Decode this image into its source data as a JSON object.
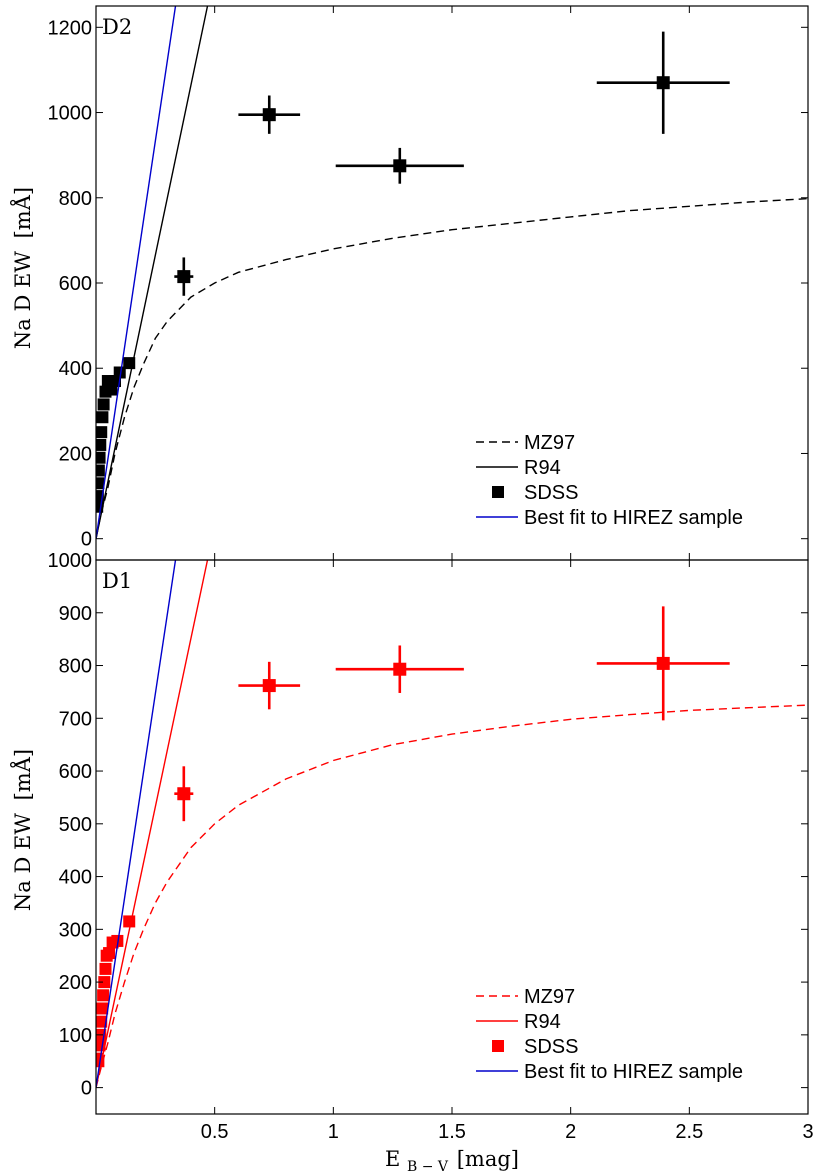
{
  "chart_data": [
    {
      "type": "scatter",
      "panel_label": "D2",
      "ylabel_main": "Na D EW",
      "ylabel_unit": "[mÅ]",
      "xlabel": "",
      "xlim": [
        0,
        3
      ],
      "ylim": [
        -50,
        1250
      ],
      "xticks": [
        0.5,
        1,
        1.5,
        2,
        2.5,
        3
      ],
      "xtick_labels": [
        "0.5",
        "1",
        "1.5",
        "2",
        "2.5",
        "3"
      ],
      "yticks": [
        0,
        200,
        400,
        600,
        800,
        1000,
        1200
      ],
      "ytick_labels": [
        "0",
        "200",
        "400",
        "600",
        "800",
        "1000",
        "1200"
      ],
      "series": [
        {
          "name": "MZ97",
          "kind": "curve",
          "style": "dashed",
          "color": "#000000",
          "x": [
            0,
            0.02,
            0.05,
            0.08,
            0.12,
            0.16,
            0.2,
            0.25,
            0.3,
            0.4,
            0.5,
            0.6,
            0.8,
            1.0,
            1.25,
            1.5,
            1.75,
            2.0,
            2.25,
            2.5,
            2.75,
            3.0
          ],
          "y": [
            0,
            55,
            120,
            200,
            285,
            355,
            410,
            470,
            510,
            567,
            600,
            625,
            655,
            680,
            705,
            725,
            740,
            755,
            770,
            780,
            790,
            798
          ]
        },
        {
          "name": "R94",
          "kind": "line",
          "style": "solid",
          "color": "#000000",
          "x": [
            0,
            0.47
          ],
          "y": [
            0,
            1250
          ]
        },
        {
          "name": "SDSS",
          "kind": "points",
          "marker": "square",
          "color": "#000000",
          "points": [
            {
              "x": 0.005,
              "y": 75
            },
            {
              "x": 0.008,
              "y": 100
            },
            {
              "x": 0.01,
              "y": 130
            },
            {
              "x": 0.012,
              "y": 160
            },
            {
              "x": 0.015,
              "y": 190
            },
            {
              "x": 0.018,
              "y": 220
            },
            {
              "x": 0.022,
              "y": 250
            },
            {
              "x": 0.027,
              "y": 285
            },
            {
              "x": 0.032,
              "y": 315
            },
            {
              "x": 0.04,
              "y": 345
            },
            {
              "x": 0.05,
              "y": 370
            },
            {
              "x": 0.065,
              "y": 350
            },
            {
              "x": 0.08,
              "y": 370
            },
            {
              "x": 0.1,
              "y": 390
            },
            {
              "x": 0.14,
              "y": 412
            }
          ],
          "binned": [
            {
              "x": 0.37,
              "y": 615,
              "xerr": 0.04,
              "yerr": 45
            },
            {
              "x": 0.73,
              "y": 995,
              "xerr": 0.13,
              "yerr": 45
            },
            {
              "x": 1.28,
              "y": 875,
              "xerr": 0.27,
              "yerr": 42
            },
            {
              "x": 2.39,
              "y": 1070,
              "xerr": 0.28,
              "yerr": 120
            }
          ]
        },
        {
          "name": "Best fit to HIREZ sample",
          "kind": "line",
          "style": "solid",
          "color": "#0000cc",
          "x": [
            0,
            0.335
          ],
          "y": [
            0,
            1250
          ]
        }
      ],
      "legend": {
        "placement": "bottom-right",
        "entries": [
          "MZ97",
          "R94",
          "SDSS",
          "Best fit to HIREZ sample"
        ]
      }
    },
    {
      "type": "scatter",
      "panel_label": "D1",
      "ylabel_main": "Na D EW",
      "ylabel_unit": "[mÅ]",
      "xlabel_main": "E",
      "xlabel_sub": "B − V",
      "xlabel_unit": "[mag]",
      "xlim": [
        0,
        3
      ],
      "ylim": [
        -50,
        1000
      ],
      "xticks": [
        0.5,
        1,
        1.5,
        2,
        2.5,
        3
      ],
      "xtick_labels": [
        "0.5",
        "1",
        "1.5",
        "2",
        "2.5",
        "3"
      ],
      "yticks": [
        0,
        100,
        200,
        300,
        400,
        500,
        600,
        700,
        800,
        900,
        1000
      ],
      "ytick_labels": [
        "0",
        "100",
        "200",
        "300",
        "400",
        "500",
        "600",
        "700",
        "800",
        "900",
        "1000"
      ],
      "series": [
        {
          "name": "MZ97",
          "kind": "curve",
          "style": "dashed",
          "color": "#ff0000",
          "x": [
            0,
            0.02,
            0.05,
            0.08,
            0.12,
            0.16,
            0.2,
            0.25,
            0.3,
            0.4,
            0.5,
            0.6,
            0.8,
            1.0,
            1.25,
            1.5,
            1.75,
            2.0,
            2.25,
            2.5,
            2.75,
            3.0
          ],
          "y": [
            0,
            35,
            85,
            140,
            200,
            255,
            300,
            350,
            390,
            455,
            500,
            535,
            585,
            620,
            650,
            670,
            685,
            698,
            707,
            715,
            720,
            725
          ]
        },
        {
          "name": "R94",
          "kind": "line",
          "style": "solid",
          "color": "#ff0000",
          "x": [
            0,
            0.47
          ],
          "y": [
            0,
            1000
          ]
        },
        {
          "name": "SDSS",
          "kind": "points",
          "marker": "square",
          "color": "#ff0000",
          "points": [
            {
              "x": 0.005,
              "y": 55
            },
            {
              "x": 0.01,
              "y": 50
            },
            {
              "x": 0.015,
              "y": 80
            },
            {
              "x": 0.018,
              "y": 100
            },
            {
              "x": 0.022,
              "y": 125
            },
            {
              "x": 0.026,
              "y": 150
            },
            {
              "x": 0.03,
              "y": 175
            },
            {
              "x": 0.035,
              "y": 200
            },
            {
              "x": 0.04,
              "y": 225
            },
            {
              "x": 0.045,
              "y": 250
            },
            {
              "x": 0.055,
              "y": 255
            },
            {
              "x": 0.07,
              "y": 275
            },
            {
              "x": 0.09,
              "y": 278
            },
            {
              "x": 0.14,
              "y": 315
            }
          ],
          "binned": [
            {
              "x": 0.37,
              "y": 557,
              "xerr": 0.04,
              "yerr": 52
            },
            {
              "x": 0.73,
              "y": 762,
              "xerr": 0.13,
              "yerr": 45
            },
            {
              "x": 1.28,
              "y": 793,
              "xerr": 0.27,
              "yerr": 45
            },
            {
              "x": 2.39,
              "y": 804,
              "xerr": 0.28,
              "yerr": 108
            }
          ]
        },
        {
          "name": "Best fit to HIREZ sample",
          "kind": "line",
          "style": "solid",
          "color": "#0000cc",
          "x": [
            0,
            0.335
          ],
          "y": [
            0,
            1000
          ]
        }
      ],
      "legend": {
        "placement": "bottom-right",
        "entries": [
          "MZ97",
          "R94",
          "SDSS",
          "Best fit to HIREZ sample"
        ]
      }
    }
  ]
}
